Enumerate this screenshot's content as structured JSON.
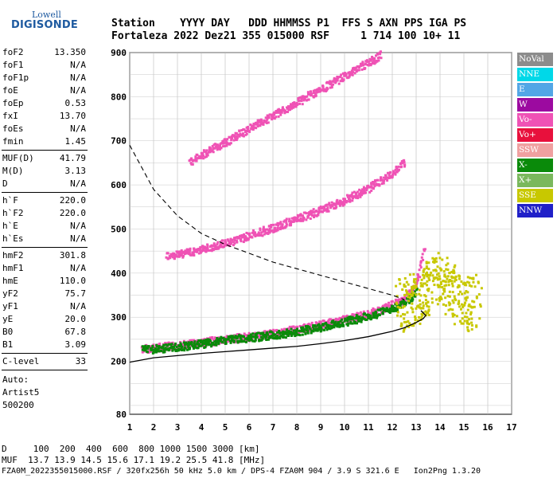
{
  "logo": {
    "line1": "Lowell",
    "line2": "DIGISONDE"
  },
  "header": {
    "row1": "Station    YYYY DAY   DDD HHMMSS P1  FFS S AXN PPS IGA PS",
    "row2": "Fortaleza 2022 Dez21 355 015000 RSF     1 714 100 10+ 11"
  },
  "params": [
    {
      "k": "foF2",
      "v": "13.350"
    },
    {
      "k": "foF1",
      "v": "N/A"
    },
    {
      "k": "foF1p",
      "v": "N/A"
    },
    {
      "k": "foE",
      "v": "N/A"
    },
    {
      "k": "foEp",
      "v": "0.53"
    },
    {
      "k": "fxI",
      "v": "13.70"
    },
    {
      "k": "foEs",
      "v": "N/A"
    },
    {
      "k": "fmin",
      "v": "1.45"
    }
  ],
  "params2": [
    {
      "k": "MUF(D)",
      "v": "41.79"
    },
    {
      "k": "M(D)",
      "v": "3.13"
    },
    {
      "k": "D",
      "v": "N/A"
    }
  ],
  "params3": [
    {
      "k": "h`F",
      "v": "220.0"
    },
    {
      "k": "h`F2",
      "v": "220.0"
    },
    {
      "k": "h`E",
      "v": "N/A"
    },
    {
      "k": "h`Es",
      "v": "N/A"
    }
  ],
  "params4": [
    {
      "k": "hmF2",
      "v": "301.8"
    },
    {
      "k": "hmF1",
      "v": "N/A"
    },
    {
      "k": "hmE",
      "v": "110.0"
    },
    {
      "k": "yF2",
      "v": "75.7"
    },
    {
      "k": "yF1",
      "v": "N/A"
    },
    {
      "k": "yE",
      "v": "20.0"
    },
    {
      "k": "B0",
      "v": "67.8"
    },
    {
      "k": "B1",
      "v": "3.09"
    }
  ],
  "params5": [
    {
      "k": "C-level",
      "v": "33"
    }
  ],
  "auto": {
    "l1": "Auto:",
    "l2": "Artist5",
    "l3": "500200"
  },
  "legend": [
    {
      "label": "NoVal",
      "color": "#8c8c8c"
    },
    {
      "label": "NNE",
      "color": "#00d8e8"
    },
    {
      "label": "E",
      "color": "#52a6e6"
    },
    {
      "label": "W",
      "color": "#9c0aa0"
    },
    {
      "label": "Vo-",
      "color": "#ef52b5"
    },
    {
      "label": "Vo+",
      "color": "#e8103c"
    },
    {
      "label": "SSW",
      "color": "#f0a0a0"
    },
    {
      "label": "X-",
      "color": "#0a8a0a"
    },
    {
      "label": "X+",
      "color": "#7ab85c"
    },
    {
      "label": "SSE",
      "color": "#c8c800"
    },
    {
      "label": "NNW",
      "color": "#2020c8"
    }
  ],
  "footer": {
    "row1": "D     100  200  400  600  800 1000 1500 3000 [km]",
    "row2": "MUF  13.7 13.9 14.5 15.6 17.1 19.2 25.5 41.8 [MHz]",
    "row3": "FZA0M_2022355015000.RSF / 320fx256h 50 kHz 5.0 km / DPS-4 FZA0M 904 / 3.9 S 321.6 E   Ion2Png 1.3.20"
  },
  "chart_data": {
    "type": "scatter",
    "xlabel": "",
    "ylabel": "",
    "xlim": [
      1,
      17
    ],
    "ylim": [
      80,
      900
    ],
    "x_ticks": [
      1,
      2,
      3,
      4,
      5,
      6,
      7,
      8,
      9,
      10,
      11,
      12,
      13,
      14,
      15,
      16,
      17
    ],
    "y_ticks": [
      80,
      200,
      300,
      400,
      500,
      600,
      700,
      800,
      900
    ],
    "series": [
      {
        "name": "Vo-",
        "role": "F2 O-trace",
        "x": [
          1.5,
          2,
          3,
          4,
          5,
          6,
          7,
          8,
          9,
          10,
          11,
          12,
          12.5,
          13,
          13.3
        ],
        "y": [
          230,
          233,
          238,
          245,
          252,
          258,
          265,
          275,
          285,
          297,
          310,
          330,
          345,
          380,
          460
        ]
      },
      {
        "name": "X-",
        "role": "F2 X-trace",
        "x": [
          1.5,
          2,
          3,
          4,
          5,
          6,
          7,
          8,
          9,
          10,
          11,
          12,
          12.5,
          13
        ],
        "y": [
          228,
          230,
          235,
          242,
          250,
          256,
          262,
          270,
          280,
          292,
          305,
          322,
          338,
          360
        ]
      },
      {
        "name": "Vo-",
        "role": "2F2 trace",
        "x": [
          2.5,
          3,
          4,
          5,
          6,
          7,
          8,
          9,
          10,
          11,
          12,
          12.5
        ],
        "y": [
          440,
          445,
          455,
          470,
          488,
          505,
          525,
          545,
          568,
          595,
          630,
          655
        ]
      },
      {
        "name": "Vo-",
        "role": "3F2 trace",
        "x": [
          3.5,
          4,
          5,
          6,
          7,
          8,
          9,
          10,
          11,
          11.5
        ],
        "y": [
          655,
          670,
          700,
          730,
          760,
          790,
          820,
          850,
          880,
          897
        ]
      },
      {
        "name": "SSE",
        "role": "spread F",
        "x": [
          12.3,
          13,
          13.5,
          14,
          14.5,
          15,
          15.5
        ],
        "y": [
          330,
          345,
          370,
          390,
          360,
          340,
          330
        ]
      }
    ],
    "profile": {
      "name": "profile",
      "x": [
        1,
        2,
        3,
        4,
        5,
        6,
        7,
        8,
        9,
        10,
        11,
        12,
        12.5,
        13,
        13.3,
        13.4,
        13.2
      ],
      "y": [
        198,
        208,
        213,
        218,
        222,
        226,
        230,
        234,
        240,
        247,
        256,
        268,
        276,
        288,
        297,
        304,
        315
      ]
    },
    "muf": {
      "name": "MUF(D)",
      "x": [
        1,
        2,
        3,
        4,
        5,
        6,
        7,
        8,
        9,
        10,
        11,
        12,
        12.5
      ],
      "y": [
        690,
        590,
        530,
        490,
        465,
        445,
        425,
        410,
        395,
        380,
        365,
        350,
        340
      ]
    }
  }
}
